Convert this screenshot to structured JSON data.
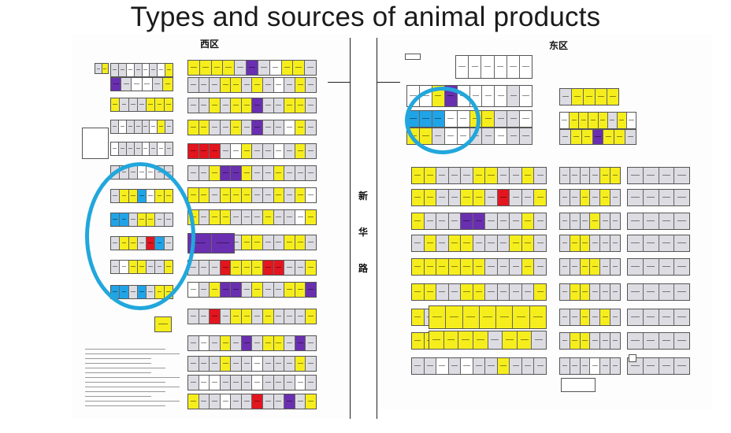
{
  "slide": {
    "title": "Types and sources of animal products"
  },
  "map": {
    "west_label": "西区",
    "east_label": "东区",
    "road_chars": [
      "新",
      "华",
      "路"
    ]
  },
  "colors": {
    "yellow": "#f6ee1c",
    "purple": "#6a2fb0",
    "red": "#e3151f",
    "blue": "#20a4e8",
    "gray": "#dcdce2",
    "highlight_ring": "#21a7dc"
  }
}
